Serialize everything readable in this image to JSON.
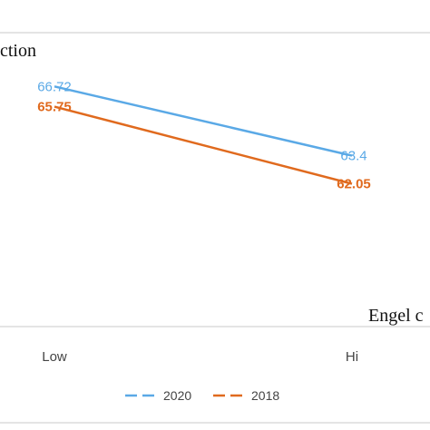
{
  "chart_data": {
    "type": "line",
    "title": "ction",
    "xlabel": "Engel c",
    "ylabel": "",
    "categories": [
      "Low",
      "Hi"
    ],
    "series": [
      {
        "name": "2020",
        "values": [
          66.72,
          63.4
        ],
        "color": "#5aa9e6"
      },
      {
        "name": "2018",
        "values": [
          65.75,
          62.05
        ],
        "color": "#e06a1e"
      }
    ],
    "ylim": [
      55.2,
      69.3
    ],
    "grid": false,
    "legend": "bottom-center",
    "data_labels": true
  }
}
